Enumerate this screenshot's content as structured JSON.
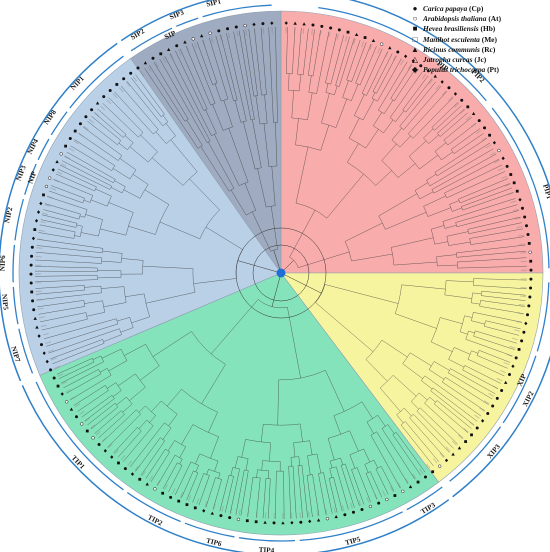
{
  "colors": {
    "pip": "#f8a8a8",
    "nip": "#b5cde6",
    "sip": "#9aa6bd",
    "tip": "#7ee2b8",
    "xip": "#f7f39a",
    "ring": "#2f80c9",
    "branch": "#333333",
    "center": "#1f6ed6"
  },
  "legend": [
    {
      "symbol": "filled-circle-icon",
      "glyph": "●",
      "species": "Carica papaya",
      "code": "(Cp)"
    },
    {
      "symbol": "open-circle-icon",
      "glyph": "○",
      "species": "Arabidopsis thaliana",
      "code": "(At)"
    },
    {
      "symbol": "filled-square-icon",
      "glyph": "■",
      "species": "Hevea brasiliensis",
      "code": "(Hb)"
    },
    {
      "symbol": "open-square-icon",
      "glyph": "□",
      "species": "Manihot esculenta",
      "code": "(Me)"
    },
    {
      "symbol": "filled-triangle-icon",
      "glyph": "▲",
      "species": "Ricinus communis",
      "code": "(Rc)"
    },
    {
      "symbol": "open-triangle-icon",
      "glyph": "△",
      "species": "Jatropha curcas",
      "code": "(Jc)"
    },
    {
      "symbol": "filled-diamond-icon",
      "glyph": "◆",
      "species": "Populus trichocarpa",
      "code": "(Pt)"
    }
  ],
  "subfamilies": [
    {
      "id": "pip",
      "label": "PIP",
      "members": [
        "PIP2",
        "PIP1"
      ]
    },
    {
      "id": "xip",
      "label": "XIP",
      "members": [
        "XIP1",
        "XIP2",
        "XIP3"
      ]
    },
    {
      "id": "tip",
      "label": "TIP",
      "members": [
        "TIP3",
        "TIP5",
        "TIP4",
        "TIP6",
        "TIP2",
        "TIP1"
      ]
    },
    {
      "id": "nip",
      "label": "NIP",
      "members": [
        "NIP7",
        "NIP5",
        "NIP6",
        "NIP2",
        "NIP3",
        "NIP4",
        "NIP8",
        "NIP1"
      ]
    },
    {
      "id": "sip",
      "label": "SIP",
      "members": [
        "SIP2",
        "SIP3",
        "SIP1"
      ]
    }
  ]
}
